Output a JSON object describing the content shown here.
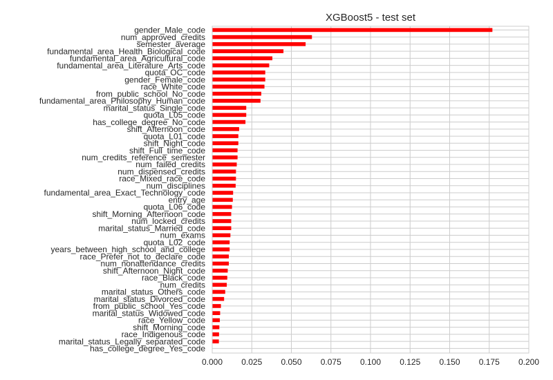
{
  "chart_data": {
    "type": "bar",
    "orientation": "horizontal",
    "title": "XGBoost5 - test set",
    "xlabel": "",
    "ylabel": "",
    "xlim": [
      0.0,
      0.2
    ],
    "xticks": [
      "0.000",
      "0.025",
      "0.050",
      "0.075",
      "0.100",
      "0.125",
      "0.150",
      "0.175",
      "0.200"
    ],
    "grid": true,
    "bar_color": "#ff0000",
    "grid_color": "#cccccc",
    "categories": [
      "gender_Male_code",
      "num_approved_credits",
      "semester_average",
      "fundamental_area_Health_Biological_code",
      "fundamental_area_Agricultural_code",
      "fundamental_area_Literature_Arts_code",
      "quota_OC_code",
      "gender_Female_code",
      "race_White_code",
      "from_public_school_No_code",
      "fundamental_area_Philosophy_Human_code",
      "marital_status_Single_code",
      "quota_L05_code",
      "has_college_degree_No_code",
      "shift_Afternoon_code",
      "quota_L01_code",
      "shift_Night_code",
      "shift_Full_time_code",
      "num_credits_reference_semester",
      "num_failed_credits",
      "num_dispensed_credits",
      "race_Mixed_race_code",
      "num_disciplines",
      "fundamental_area_Exact_Technology_code",
      "entry_age",
      "quota_L06_code",
      "shift_Morning_Afternoon_code",
      "num_locked_credits",
      "marital_status_Married_code",
      "num_exams",
      "quota_L02_code",
      "years_between_high_school_and_college",
      "race_Prefer_not_to_declare_code",
      "num_nonattendance_credits",
      "shift_Afternoon_Night_code",
      "race_Black_code",
      "num_credits",
      "marital_status_Others_code",
      "marital_status_Divorced_code",
      "from_public_school_Yes_code",
      "marital_status_Widowed_code",
      "race_Yellow_code",
      "shift_Morning_code",
      "race_Indigenous_code",
      "marital_status_Legally_separated_code",
      "has_college_degree_Yes_code"
    ],
    "values": [
      0.177,
      0.063,
      0.059,
      0.045,
      0.038,
      0.036,
      0.0335,
      0.0335,
      0.033,
      0.031,
      0.0305,
      0.0215,
      0.0215,
      0.021,
      0.017,
      0.0165,
      0.0165,
      0.016,
      0.016,
      0.0155,
      0.015,
      0.015,
      0.0148,
      0.0132,
      0.013,
      0.0125,
      0.012,
      0.012,
      0.012,
      0.0115,
      0.011,
      0.011,
      0.0105,
      0.0105,
      0.0098,
      0.0095,
      0.0092,
      0.0082,
      0.0075,
      0.0055,
      0.005,
      0.0048,
      0.0045,
      0.0043,
      0.0042,
      0.0
    ]
  }
}
